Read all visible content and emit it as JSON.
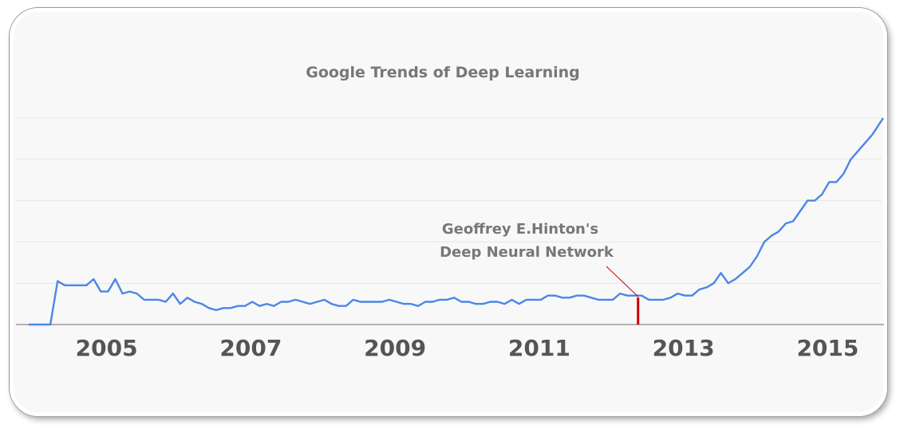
{
  "chart_data": {
    "type": "line",
    "title": "Google Trends of Deep Learning",
    "xlabel": "",
    "ylabel": "",
    "xlim": [
      2004.0,
      2015.85
    ],
    "ylim": [
      0,
      100
    ],
    "x_ticks": [
      "2005",
      "2007",
      "2009",
      "2011",
      "2013",
      "2015"
    ],
    "grid": true,
    "line_color": "#4a86e8",
    "marker_color": "#cc0000",
    "annotation": {
      "lines": [
        "Geoffrey E.Hinton's",
        "Deep Neural Network"
      ],
      "x": 2012.45
    },
    "series": [
      {
        "x": [
          2004.0,
          2004.3,
          2004.4,
          2004.5,
          2004.6,
          2004.7,
          2004.8,
          2004.9,
          2005.0,
          2005.1,
          2005.2,
          2005.3,
          2005.4,
          2005.5,
          2005.6,
          2005.7,
          2005.8,
          2005.9,
          2006.0,
          2006.1,
          2006.2,
          2006.3,
          2006.4,
          2006.5,
          2006.6,
          2006.7,
          2006.8,
          2006.9,
          2007.0,
          2007.1,
          2007.2,
          2007.3,
          2007.4,
          2007.5,
          2007.6,
          2007.7,
          2007.8,
          2007.9,
          2008.0,
          2008.1,
          2008.2,
          2008.3,
          2008.4,
          2008.5,
          2008.6,
          2008.7,
          2008.8,
          2008.9,
          2009.0,
          2009.1,
          2009.2,
          2009.3,
          2009.4,
          2009.5,
          2009.6,
          2009.7,
          2009.8,
          2009.9,
          2010.0,
          2010.1,
          2010.2,
          2010.3,
          2010.4,
          2010.5,
          2010.6,
          2010.7,
          2010.8,
          2010.9,
          2011.0,
          2011.1,
          2011.2,
          2011.3,
          2011.4,
          2011.5,
          2011.6,
          2011.7,
          2011.8,
          2011.9,
          2012.0,
          2012.1,
          2012.2,
          2012.3,
          2012.4,
          2012.5,
          2012.6,
          2012.7,
          2012.8,
          2012.9,
          2013.0,
          2013.1,
          2013.2,
          2013.3,
          2013.4,
          2013.5,
          2013.6,
          2013.7,
          2013.8,
          2013.9,
          2014.0,
          2014.1,
          2014.2,
          2014.3,
          2014.4,
          2014.5,
          2014.6,
          2014.7,
          2014.8,
          2014.9,
          2015.0,
          2015.1,
          2015.2,
          2015.3,
          2015.4,
          2015.5,
          2015.6,
          2015.7,
          2015.85
        ],
        "values": [
          0,
          0,
          21,
          19,
          19,
          19,
          19,
          22,
          16,
          16,
          22,
          15,
          16,
          15,
          12,
          12,
          12,
          11,
          15,
          10,
          13,
          11,
          10,
          8,
          7,
          8,
          8,
          9,
          9,
          11,
          9,
          10,
          9,
          11,
          11,
          12,
          11,
          10,
          11,
          12,
          10,
          9,
          9,
          12,
          11,
          11,
          11,
          11,
          12,
          11,
          10,
          10,
          9,
          11,
          11,
          12,
          12,
          13,
          11,
          11,
          10,
          10,
          11,
          11,
          10,
          12,
          10,
          12,
          12,
          12,
          14,
          14,
          13,
          13,
          14,
          14,
          13,
          12,
          12,
          12,
          15,
          14,
          14,
          14,
          12,
          12,
          12,
          13,
          15,
          14,
          14,
          17,
          18,
          20,
          25,
          20,
          22,
          25,
          28,
          33,
          40,
          43,
          45,
          49,
          50,
          55,
          60,
          60,
          63,
          69,
          69,
          73,
          80,
          84,
          88,
          92,
          100
        ]
      }
    ]
  }
}
